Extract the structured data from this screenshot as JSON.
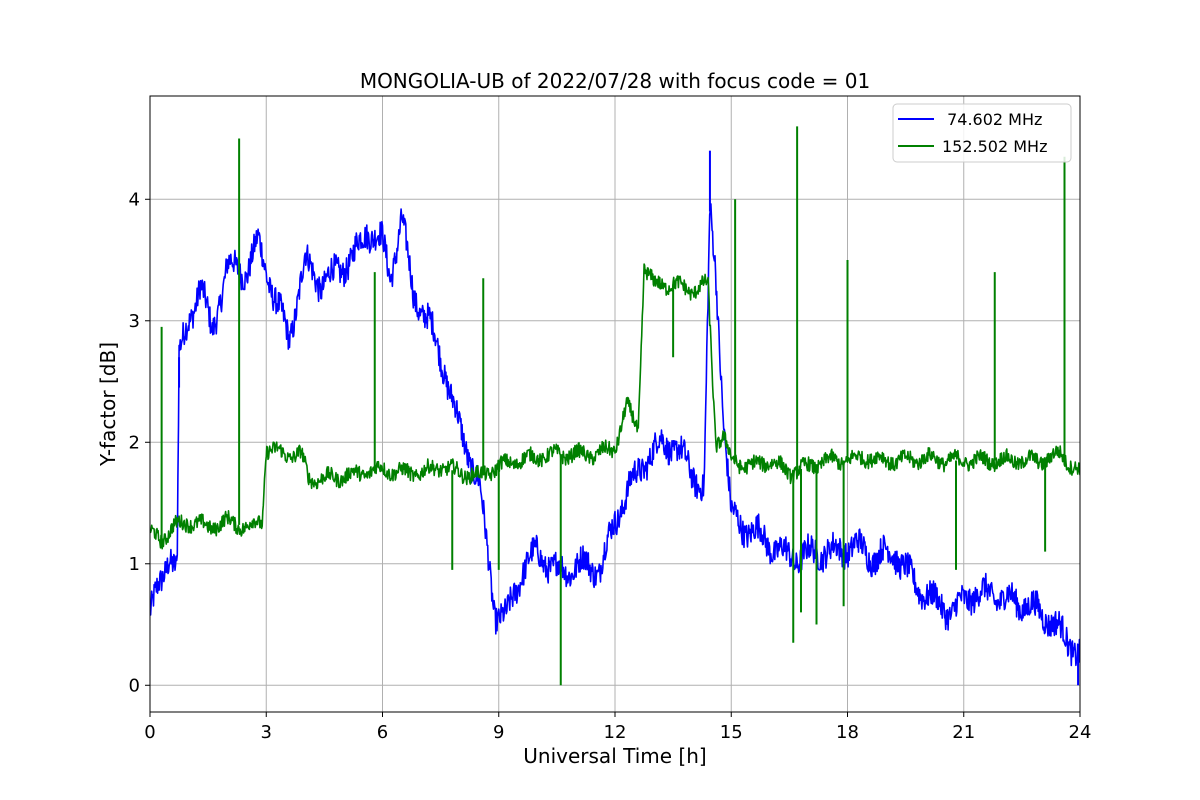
{
  "chart_data": {
    "type": "line",
    "title": "MONGOLIA-UB of 2022/07/28 with focus code = 01",
    "xlabel": "Universal Time [h]",
    "ylabel": "Y-factor [dB]",
    "xlim": [
      0,
      24
    ],
    "ylim": [
      -0.22,
      4.85
    ],
    "xticks": [
      0,
      3,
      6,
      9,
      12,
      15,
      18,
      21,
      24
    ],
    "xtick_labels": [
      "0",
      "3",
      "6",
      "9",
      "12",
      "15",
      "18",
      "21",
      "24"
    ],
    "yticks": [
      0,
      1,
      2,
      3,
      4
    ],
    "ytick_labels": [
      "0",
      "1",
      "2",
      "3",
      "4"
    ],
    "grid": true,
    "legend_position": "top-right",
    "series": [
      {
        "name": " 74.602 MHz",
        "color": "#0000ff",
        "x": [
          0.0,
          0.3,
          0.5,
          0.7,
          0.75,
          1.0,
          1.3,
          1.6,
          2.0,
          2.5,
          2.8,
          3.2,
          3.6,
          4.0,
          4.4,
          4.8,
          5.2,
          5.6,
          6.0,
          6.2,
          6.5,
          6.8,
          7.2,
          7.6,
          8.0,
          8.5,
          8.9,
          9.2,
          9.6,
          10.0,
          10.4,
          10.8,
          11.2,
          11.6,
          12.0,
          12.4,
          12.8,
          13.2,
          13.6,
          14.0,
          14.3,
          14.45,
          14.6,
          14.8,
          15.0,
          15.3,
          15.7,
          16.2,
          16.7,
          17.2,
          17.7,
          18.2,
          18.7,
          19.2,
          19.7,
          20.2,
          20.7,
          21.2,
          21.7,
          22.2,
          22.7,
          23.2,
          23.6,
          24.0
        ],
        "y": [
          0.6,
          0.85,
          1.1,
          0.95,
          2.7,
          3.0,
          3.3,
          2.9,
          3.45,
          3.4,
          3.65,
          3.2,
          2.85,
          3.5,
          3.3,
          3.4,
          3.5,
          3.75,
          3.65,
          3.35,
          3.85,
          3.2,
          3.0,
          2.6,
          2.1,
          1.65,
          0.6,
          0.55,
          0.95,
          1.1,
          0.95,
          0.95,
          1.0,
          0.95,
          1.35,
          1.65,
          1.85,
          2.0,
          1.95,
          1.75,
          1.6,
          3.9,
          3.4,
          2.2,
          1.4,
          1.3,
          1.25,
          1.1,
          1.05,
          1.1,
          1.1,
          1.15,
          1.05,
          1.1,
          0.85,
          0.7,
          0.6,
          0.75,
          0.75,
          0.7,
          0.65,
          0.55,
          0.4,
          0.25
        ]
      },
      {
        "name": "152.502 MHz",
        "color": "#008000",
        "x": [
          0.0,
          0.3,
          0.6,
          1.0,
          1.5,
          2.0,
          2.5,
          2.9,
          3.0,
          3.5,
          3.9,
          4.1,
          4.5,
          5.0,
          5.5,
          6.0,
          6.5,
          7.0,
          7.5,
          8.0,
          8.5,
          9.0,
          9.5,
          10.0,
          10.5,
          11.0,
          11.5,
          12.0,
          12.3,
          12.6,
          12.75,
          13.0,
          13.5,
          14.0,
          14.4,
          14.6,
          14.8,
          15.0,
          15.5,
          16.0,
          16.5,
          17.0,
          17.5,
          18.0,
          18.5,
          19.0,
          19.5,
          20.0,
          20.5,
          21.0,
          21.5,
          22.0,
          22.5,
          23.0,
          23.5,
          24.0
        ],
        "y": [
          1.25,
          1.2,
          1.3,
          1.35,
          1.3,
          1.35,
          1.3,
          1.35,
          1.95,
          1.9,
          1.9,
          1.7,
          1.7,
          1.72,
          1.75,
          1.78,
          1.75,
          1.75,
          1.8,
          1.75,
          1.72,
          1.8,
          1.85,
          1.88,
          1.9,
          1.9,
          1.9,
          1.95,
          2.3,
          2.1,
          3.45,
          3.3,
          3.3,
          3.25,
          3.3,
          2.0,
          2.05,
          1.85,
          1.8,
          1.85,
          1.75,
          1.8,
          1.85,
          1.85,
          1.88,
          1.85,
          1.85,
          1.87,
          1.85,
          1.85,
          1.85,
          1.85,
          1.85,
          1.85,
          1.9,
          1.75
        ]
      }
    ],
    "spikes": [
      {
        "series": 1,
        "x": 0.3,
        "y": 2.95
      },
      {
        "series": 1,
        "x": 2.3,
        "y": 4.5
      },
      {
        "series": 1,
        "x": 5.8,
        "y": 3.4
      },
      {
        "series": 1,
        "x": 7.8,
        "y": 0.95
      },
      {
        "series": 1,
        "x": 8.6,
        "y": 3.35
      },
      {
        "series": 1,
        "x": 9.0,
        "y": 0.95
      },
      {
        "series": 1,
        "x": 10.6,
        "y": 0.0
      },
      {
        "series": 1,
        "x": 13.5,
        "y": 2.7
      },
      {
        "series": 1,
        "x": 15.1,
        "y": 4.0
      },
      {
        "series": 1,
        "x": 16.6,
        "y": 0.35
      },
      {
        "series": 1,
        "x": 16.7,
        "y": 4.6
      },
      {
        "series": 1,
        "x": 16.8,
        "y": 0.6
      },
      {
        "series": 1,
        "x": 17.2,
        "y": 0.5
      },
      {
        "series": 1,
        "x": 17.9,
        "y": 0.65
      },
      {
        "series": 1,
        "x": 18.0,
        "y": 3.5
      },
      {
        "series": 1,
        "x": 20.8,
        "y": 0.95
      },
      {
        "series": 1,
        "x": 21.8,
        "y": 3.4
      },
      {
        "series": 1,
        "x": 23.1,
        "y": 1.1
      },
      {
        "series": 1,
        "x": 23.6,
        "y": 4.35
      },
      {
        "series": 0,
        "x": 0.75,
        "y": 2.45
      },
      {
        "series": 0,
        "x": 14.45,
        "y": 4.4
      },
      {
        "series": 0,
        "x": 23.95,
        "y": 0.0
      }
    ]
  }
}
